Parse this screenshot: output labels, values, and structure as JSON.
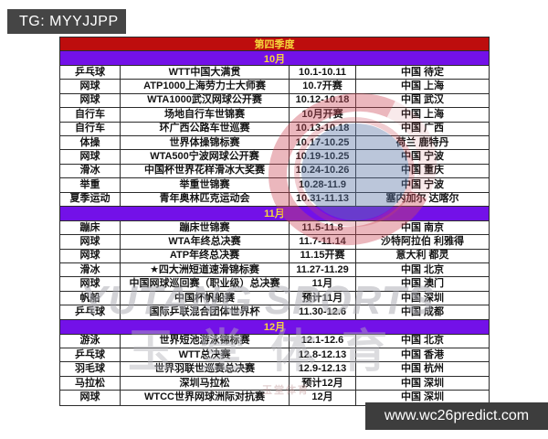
{
  "overlays": {
    "tg_label": "TG: MYYJJPP",
    "site_label": "www.wc26predict.com"
  },
  "table": {
    "quarter": "第四季度",
    "sections": [
      {
        "month": "10月",
        "rows": [
          [
            "乒乓球",
            "WTT中国大满贯",
            "10.1-10.11",
            "中国 待定"
          ],
          [
            "网球",
            "ATP1000上海劳力士大师赛",
            "10.7开赛",
            "中国 上海"
          ],
          [
            "网球",
            "WTA1000武汉网球公开赛",
            "10.12-10.18",
            "中国 武汉"
          ],
          [
            "自行车",
            "场地自行车世锦赛",
            "10月开赛",
            "中国 上海"
          ],
          [
            "自行车",
            "环广西公路车世巡赛",
            "10.13-10.18",
            "中国 广西"
          ],
          [
            "体操",
            "世界体操锦标赛",
            "10.17-10.25",
            "荷兰 鹿特丹"
          ],
          [
            "网球",
            "WTA500宁波网球公开赛",
            "10.19-10.25",
            "中国 宁波"
          ],
          [
            "滑冰",
            "中国杯世界花样滑冰大奖赛",
            "10.24-10.26",
            "中国 重庆"
          ],
          [
            "举重",
            "举重世锦赛",
            "10.28-11.9",
            "中国 宁波"
          ],
          [
            "夏季运动",
            "青年奥林匹克运动会",
            "10.31-11.13",
            "塞内加尔 达喀尔"
          ]
        ]
      },
      {
        "month": "11月",
        "rows": [
          [
            "蹦床",
            "蹦床世锦赛",
            "11.5-11.8",
            "中国 南京"
          ],
          [
            "网球",
            "WTA年终总决赛",
            "11.7-11.14",
            "沙特阿拉伯 利雅得"
          ],
          [
            "网球",
            "ATP年终总决赛",
            "11.15开赛",
            "意大利 都灵"
          ],
          [
            "滑冰",
            "★四大洲短道速滑锦标赛",
            "11.27-11.29",
            "中国 北京"
          ],
          [
            "网球",
            "中国网球巡回赛（职业级）总决赛",
            "11月",
            "中国 澳门"
          ],
          [
            "帆船",
            "中国杯帆船赛",
            "预计11月",
            "中国 深圳"
          ],
          [
            "乒乓球",
            "国际乒联混合团体世界杯",
            "11.30-12.6",
            "中国 成都"
          ]
        ]
      },
      {
        "month": "12月",
        "rows": [
          [
            "游泳",
            "世界短池游泳锦标赛",
            "12.1-12.6",
            "中国 北京"
          ],
          [
            "乒乓球",
            "WTT总决赛",
            "12.8-12.13",
            "中国 香港"
          ],
          [
            "羽毛球",
            "世界羽联世巡赛总决赛",
            "12.9-12.13",
            "中国 杭州"
          ],
          [
            "马拉松",
            "深圳马拉松",
            "预计12月",
            "中国 深圳"
          ],
          [
            "网球",
            "WTCC世界网球洲际对抗赛",
            "12月",
            "中国 深圳"
          ]
        ]
      }
    ]
  },
  "watermarks": {
    "brand_en": "YUTANG SPORTS",
    "brand_cn": "玉堂体育",
    "stamp": "玉堂体育"
  },
  "colors": {
    "quarter_bg": "#bd0d0d",
    "month_bg": "#7311e8",
    "header_text": "#f6d83c",
    "bar_bg": "#454545"
  }
}
